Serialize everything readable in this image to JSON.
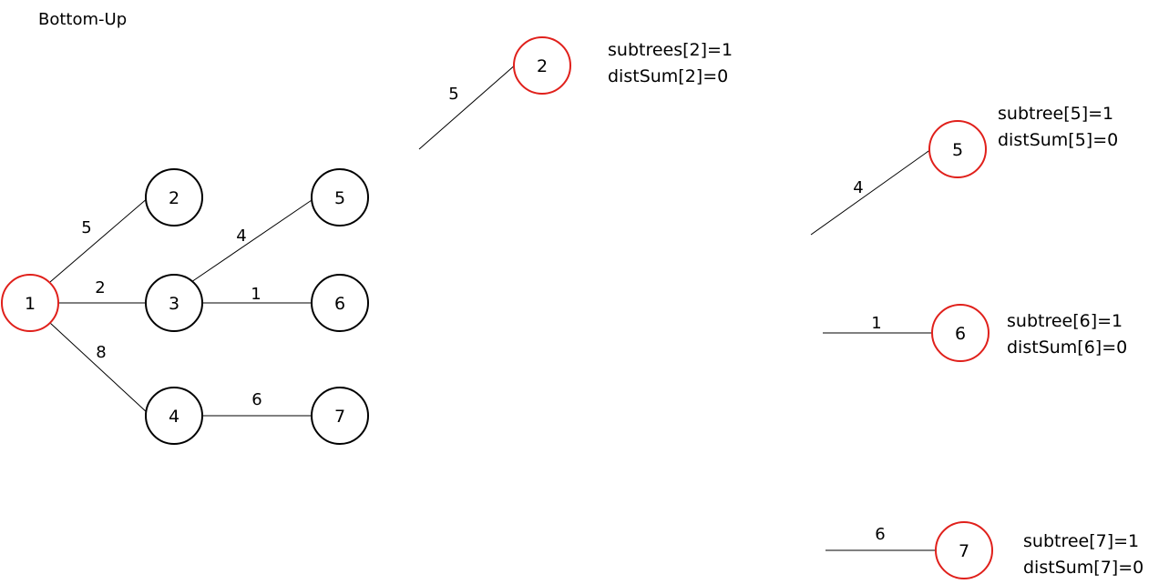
{
  "title": "Bottom-Up",
  "colors": {
    "highlight": "#e0201b",
    "normal": "#000000"
  },
  "main_tree": {
    "nodes": [
      {
        "id": "n1",
        "label": "1",
        "highlight": true
      },
      {
        "id": "n2",
        "label": "2",
        "highlight": false
      },
      {
        "id": "n3",
        "label": "3",
        "highlight": false
      },
      {
        "id": "n4",
        "label": "4",
        "highlight": false
      },
      {
        "id": "n5",
        "label": "5",
        "highlight": false
      },
      {
        "id": "n6",
        "label": "6",
        "highlight": false
      },
      {
        "id": "n7",
        "label": "7",
        "highlight": false
      }
    ],
    "edges": [
      {
        "from": "1",
        "to": "2",
        "weight": "5"
      },
      {
        "from": "1",
        "to": "3",
        "weight": "2"
      },
      {
        "from": "1",
        "to": "4",
        "weight": "8"
      },
      {
        "from": "3",
        "to": "5",
        "weight": "4"
      },
      {
        "from": "3",
        "to": "6",
        "weight": "1"
      },
      {
        "from": "4",
        "to": "7",
        "weight": "6"
      }
    ]
  },
  "leaf_panels": [
    {
      "node_label": "2",
      "edge_weight": "5",
      "line1": "subtrees[2]=1",
      "line2": "distSum[2]=0"
    },
    {
      "node_label": "5",
      "edge_weight": "4",
      "line1": "subtree[5]=1",
      "line2": "distSum[5]=0"
    },
    {
      "node_label": "6",
      "edge_weight": "1",
      "line1": "subtree[6]=1",
      "line2": "distSum[6]=0"
    },
    {
      "node_label": "7",
      "edge_weight": "6",
      "line1": "subtree[7]=1",
      "line2": "distSum[7]=0"
    }
  ]
}
